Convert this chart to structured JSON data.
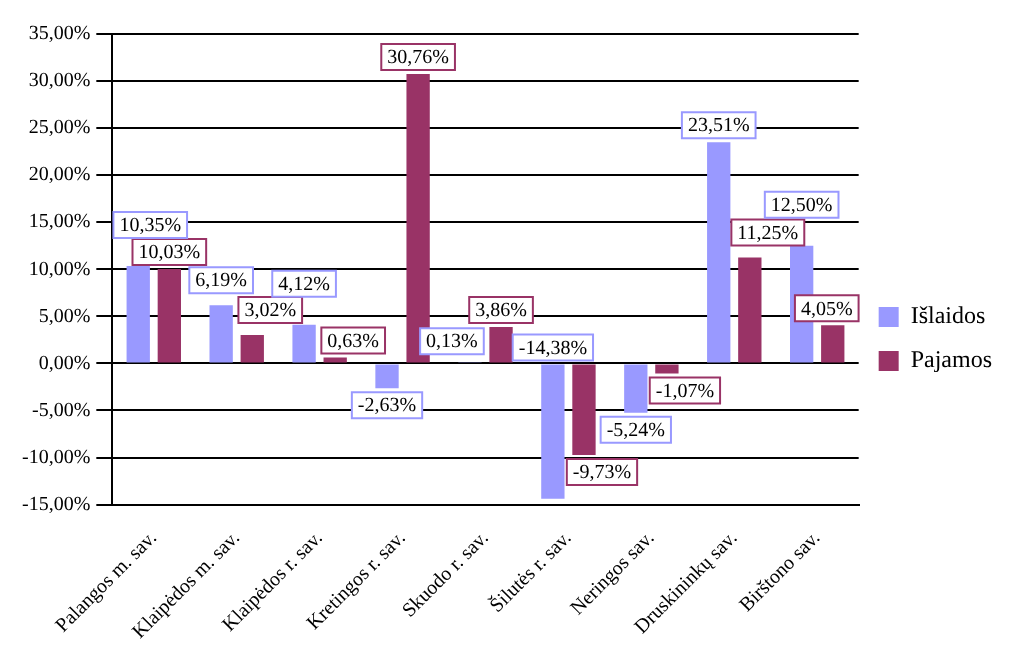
{
  "chart_data": {
    "type": "bar",
    "categories": [
      "Palangos m. sav.",
      "Klaipėdos m. sav.",
      "Klaipėdos r. sav.",
      "Kretingos r. sav.",
      "Skuodo r. sav.",
      "Šilutės r. sav.",
      "Neringos sav.",
      "Druskininkų sav.",
      "Birštono sav."
    ],
    "series": [
      {
        "name": "Išlaidos",
        "color": "#9999ff",
        "values": [
          10.35,
          6.19,
          4.12,
          -2.63,
          0.13,
          -14.38,
          -5.24,
          23.51,
          12.5
        ],
        "value_labels": [
          "10,35%",
          "6,19%",
          "4,12%",
          "-2,63%",
          "0,13%",
          "-14,38%",
          "-5,24%",
          "23,51%",
          "12,50%"
        ]
      },
      {
        "name": "Pajamos",
        "color": "#993366",
        "values": [
          10.03,
          3.02,
          0.63,
          30.76,
          3.86,
          -9.73,
          -1.07,
          11.25,
          4.05
        ],
        "value_labels": [
          "10,03%",
          "3,02%",
          "0,63%",
          "30,76%",
          "3,86%",
          "-9,73%",
          "-1,07%",
          "11,25%",
          "4,05%"
        ]
      }
    ],
    "ylim": [
      -15,
      35
    ],
    "yticks": [
      {
        "value": -15,
        "label": "-15,00%"
      },
      {
        "value": -10,
        "label": "-10,00%"
      },
      {
        "value": -5,
        "label": "-5,00%"
      },
      {
        "value": 0,
        "label": "0,00%"
      },
      {
        "value": 5,
        "label": "5,00%"
      },
      {
        "value": 10,
        "label": "10,00%"
      },
      {
        "value": 15,
        "label": "15,00%"
      },
      {
        "value": 20,
        "label": "20,00%"
      },
      {
        "value": 25,
        "label": "25,00%"
      },
      {
        "value": 30,
        "label": "30,00%"
      },
      {
        "value": 35,
        "label": "35,00%"
      }
    ],
    "grid": "y",
    "legend": "right"
  }
}
